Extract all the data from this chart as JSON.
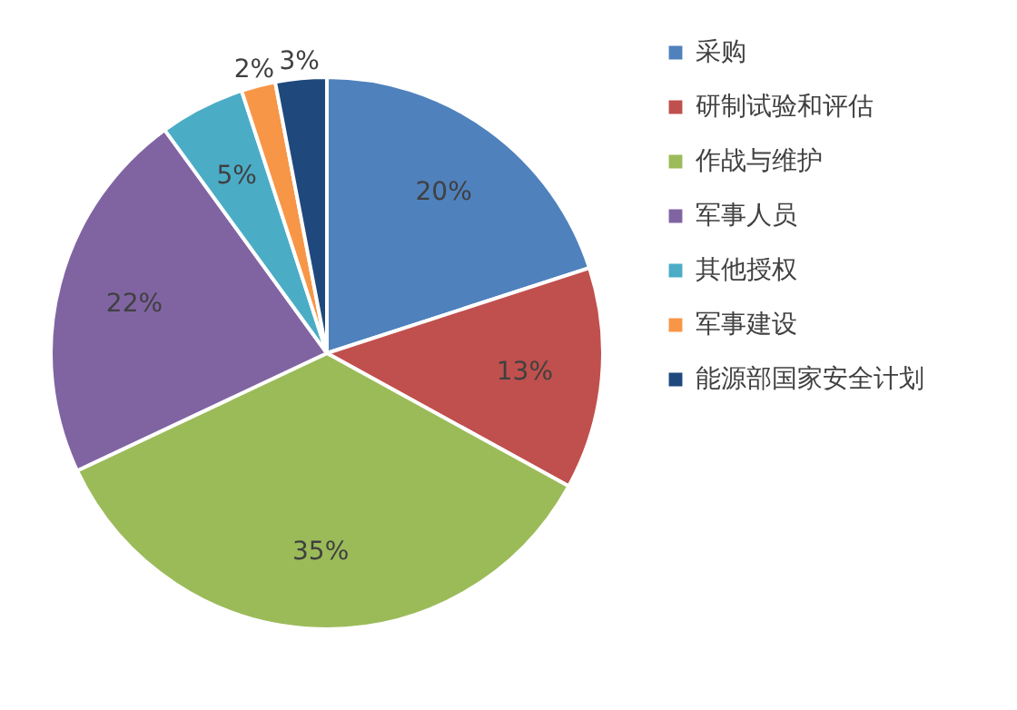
{
  "chart_data": {
    "type": "pie",
    "categories": [
      "采购",
      "研制试验和评估",
      "作战与维护",
      "军事人员",
      "其他授权",
      "军事建设",
      "能源部国家安全计划"
    ],
    "values": [
      20,
      13,
      35,
      22,
      5,
      2,
      3
    ],
    "colors": [
      "#4f81bd",
      "#c0504d",
      "#9bbb59",
      "#8064a2",
      "#4bacc6",
      "#f79646",
      "#1f497d"
    ],
    "value_labels": [
      "20%",
      "13%",
      "35%",
      "22%",
      "5%",
      "2%",
      "3%"
    ],
    "legend": "right"
  }
}
